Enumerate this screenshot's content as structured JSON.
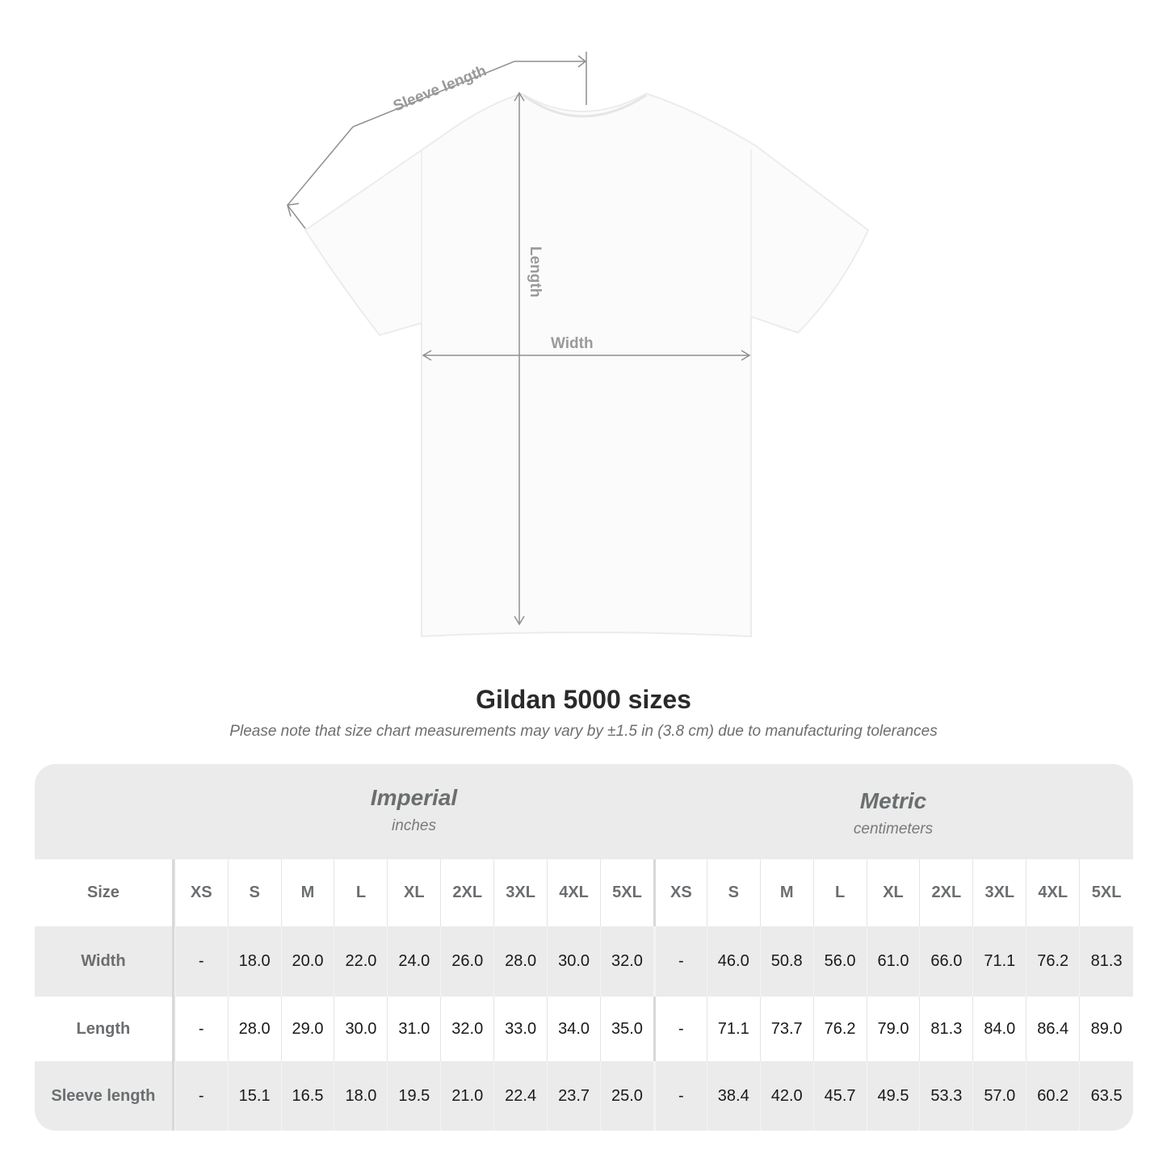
{
  "diagram": {
    "sleeve_label": "Sleeve length",
    "length_label": "Length",
    "width_label": "Width"
  },
  "title": "Gildan 5000 sizes",
  "subtitle": "Please note that size chart measurements may vary by ±1.5 in (3.8 cm) due to manufacturing tolerances",
  "table": {
    "imperial": {
      "title": "Imperial",
      "unit": "inches"
    },
    "metric": {
      "title": "Metric",
      "unit": "centimeters"
    },
    "size_label": "Size",
    "sizes": [
      "XS",
      "S",
      "M",
      "L",
      "XL",
      "2XL",
      "3XL",
      "4XL",
      "5XL"
    ],
    "rows": [
      {
        "label": "Width",
        "imperial": [
          "-",
          "18.0",
          "20.0",
          "22.0",
          "24.0",
          "26.0",
          "28.0",
          "30.0",
          "32.0"
        ],
        "metric": [
          "-",
          "46.0",
          "50.8",
          "56.0",
          "61.0",
          "66.0",
          "71.1",
          "76.2",
          "81.3"
        ]
      },
      {
        "label": "Length",
        "imperial": [
          "-",
          "28.0",
          "29.0",
          "30.0",
          "31.0",
          "32.0",
          "33.0",
          "34.0",
          "35.0"
        ],
        "metric": [
          "-",
          "71.1",
          "73.7",
          "76.2",
          "79.0",
          "81.3",
          "84.0",
          "86.4",
          "89.0"
        ]
      },
      {
        "label": "Sleeve length",
        "imperial": [
          "-",
          "15.1",
          "16.5",
          "18.0",
          "19.5",
          "21.0",
          "22.4",
          "23.7",
          "25.0"
        ],
        "metric": [
          "-",
          "38.4",
          "42.0",
          "45.7",
          "49.5",
          "53.3",
          "57.0",
          "60.2",
          "63.5"
        ]
      }
    ]
  }
}
